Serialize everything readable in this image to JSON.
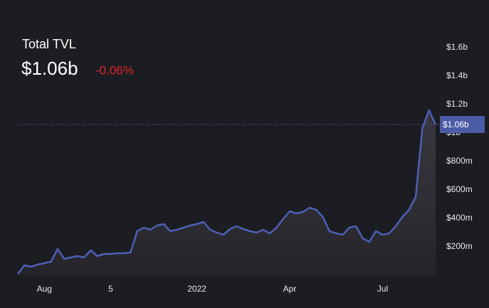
{
  "chart_data": {
    "type": "line",
    "title": "Total TVL",
    "current": {
      "value": 1060000000,
      "label": "$1.06b"
    },
    "change": "-0.06%",
    "categories": [
      null,
      null,
      null,
      null,
      "Aug",
      null,
      null,
      null,
      null,
      null,
      null,
      null,
      null,
      null,
      "5",
      null,
      null,
      null,
      null,
      null,
      null,
      null,
      null,
      null,
      null,
      null,
      null,
      "2022",
      null,
      null,
      null,
      null,
      null,
      null,
      null,
      null,
      null,
      null,
      null,
      null,
      null,
      "Apr",
      null,
      null,
      null,
      null,
      null,
      null,
      null,
      null,
      null,
      null,
      null,
      null,
      null,
      "Jul",
      null,
      null,
      null,
      null,
      null,
      null,
      null,
      null
    ],
    "series": [
      {
        "color": "#4e5fb4",
        "values": [
          10000000.0,
          70000000.0,
          60000000.0,
          75000000.0,
          85000000.0,
          95000000.0,
          185000000.0,
          115000000.0,
          125000000.0,
          135000000.0,
          125000000.0,
          175000000.0,
          135000000.0,
          150000000.0,
          150000000.0,
          155000000.0,
          155000000.0,
          160000000.0,
          310000000.0,
          335000000.0,
          320000000.0,
          350000000.0,
          360000000.0,
          310000000.0,
          320000000.0,
          335000000.0,
          350000000.0,
          360000000.0,
          375000000.0,
          320000000.0,
          300000000.0,
          285000000.0,
          325000000.0,
          345000000.0,
          325000000.0,
          310000000.0,
          300000000.0,
          320000000.0,
          295000000.0,
          335000000.0,
          395000000.0,
          450000000.0,
          435000000.0,
          445000000.0,
          475000000.0,
          460000000.0,
          410000000.0,
          310000000.0,
          295000000.0,
          285000000.0,
          335000000.0,
          345000000.0,
          260000000.0,
          235000000.0,
          310000000.0,
          285000000.0,
          295000000.0,
          345000000.0,
          410000000.0,
          460000000.0,
          550000000.0,
          1035000000.0,
          1160000000.0,
          1060000000.0
        ]
      }
    ],
    "ylim": [
      0,
      1700000000
    ],
    "yticks": [
      {
        "value": 200000000,
        "label": "$200m"
      },
      {
        "value": 400000000,
        "label": "$400m"
      },
      {
        "value": 600000000,
        "label": "$600m"
      },
      {
        "value": 800000000,
        "label": "$800m"
      },
      {
        "value": 1000000000,
        "label": "$1b"
      },
      {
        "value": 1200000000,
        "label": "$1.2b"
      },
      {
        "value": 1400000000,
        "label": "$1.4b"
      },
      {
        "value": 1600000000,
        "label": "$1.6b"
      }
    ]
  }
}
